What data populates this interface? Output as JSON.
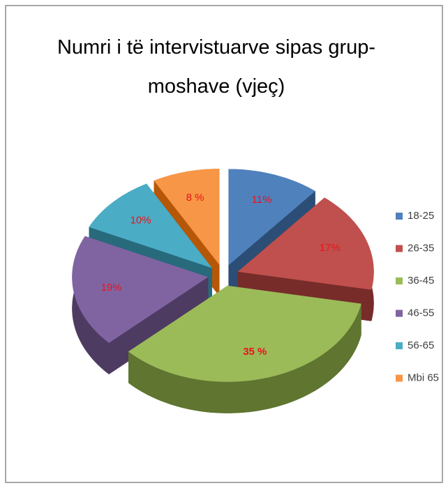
{
  "chart_data": {
    "type": "pie",
    "title": "Numri i të intervistuarve sipas grup-moshave (vjeç)",
    "categories": [
      "18-25",
      "26-35",
      "36-45",
      "46-55",
      "56-65",
      "Mbi 65"
    ],
    "values": [
      11,
      17,
      35,
      19,
      10,
      8
    ],
    "value_labels": [
      "11%",
      "17%",
      "35 %",
      "19%",
      "10%",
      "8 %"
    ],
    "colors": [
      "#4f81bd",
      "#c0504d",
      "#9bbb59",
      "#8064a2",
      "#4bacc6",
      "#f79646"
    ],
    "side_colors": [
      "#2c4d75",
      "#772c2a",
      "#5f7530",
      "#4d3b62",
      "#276a7c",
      "#b65708"
    ],
    "legend": "right",
    "exploded": true
  }
}
